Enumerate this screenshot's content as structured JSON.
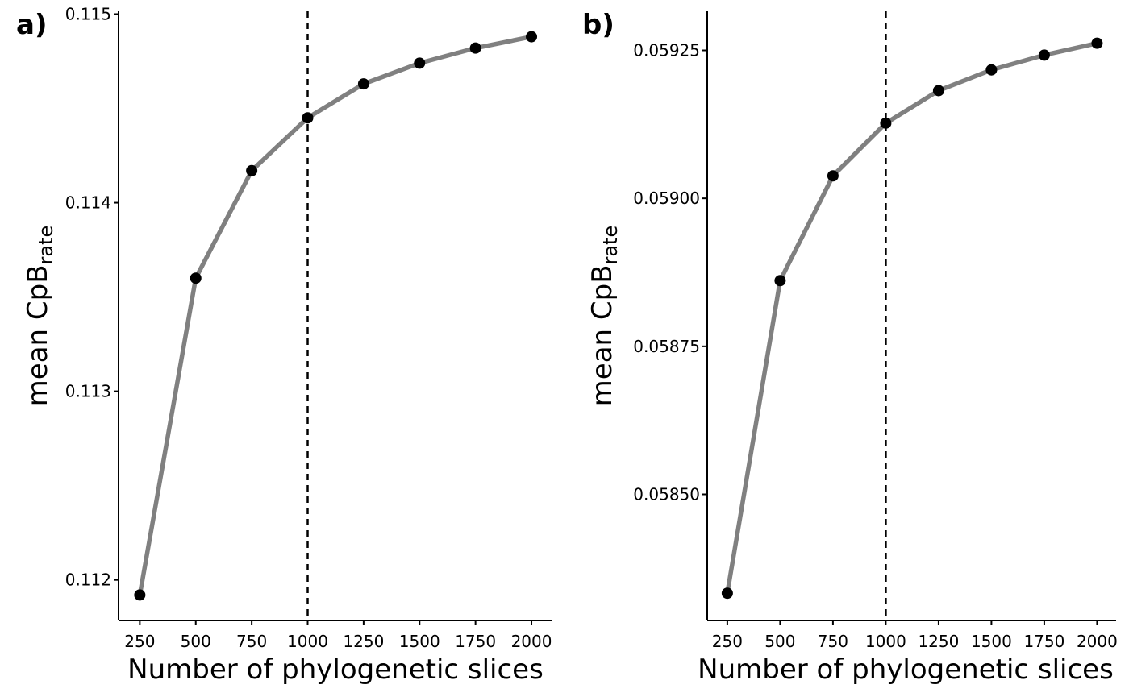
{
  "chart_data": [
    {
      "type": "line",
      "panel_label": "a)",
      "xlabel": "Number of phylogenetic slices",
      "ylabel": "mean CpB",
      "ylabel_subscript": "rate",
      "x": [
        250,
        500,
        750,
        1000,
        1250,
        1500,
        1750,
        2000
      ],
      "y": [
        0.11192,
        0.1136,
        0.11417,
        0.11445,
        0.11463,
        0.11474,
        0.11482,
        0.11488
      ],
      "x_ticks": [
        250,
        500,
        750,
        1000,
        1250,
        1500,
        1750,
        2000
      ],
      "x_tick_labels": [
        "250",
        "500",
        "750",
        "1000",
        "1250",
        "1500",
        "1750",
        "2000"
      ],
      "y_ticks": [
        0.112,
        0.113,
        0.114,
        0.115
      ],
      "y_tick_labels": [
        "0.112",
        "0.113",
        "0.114",
        "0.115"
      ],
      "xlim": [
        155,
        2090
      ],
      "ylim": [
        0.111785,
        0.115015
      ],
      "reference_line_x": 1000,
      "grid": false,
      "line_color": "#808080",
      "point_color": "#000000"
    },
    {
      "type": "line",
      "panel_label": "b)",
      "xlabel": "Number of phylogenetic slices",
      "ylabel": "mean CpB",
      "ylabel_subscript": "rate",
      "x": [
        250,
        500,
        750,
        1000,
        1250,
        1500,
        1750,
        2000
      ],
      "y": [
        0.058333,
        0.058861,
        0.059038,
        0.059127,
        0.059182,
        0.059217,
        0.059242,
        0.059262
      ],
      "x_ticks": [
        250,
        500,
        750,
        1000,
        1250,
        1500,
        1750,
        2000
      ],
      "x_tick_labels": [
        "250",
        "500",
        "750",
        "1000",
        "1250",
        "1500",
        "1750",
        "2000"
      ],
      "y_ticks": [
        0.0585,
        0.05875,
        0.059,
        0.05925
      ],
      "y_tick_labels": [
        "0.05850",
        "0.05875",
        "0.05900",
        "0.05925"
      ],
      "xlim": [
        155,
        2090
      ],
      "ylim": [
        0.058287,
        0.059316
      ],
      "reference_line_x": 1000,
      "grid": false,
      "line_color": "#808080",
      "point_color": "#000000"
    }
  ]
}
